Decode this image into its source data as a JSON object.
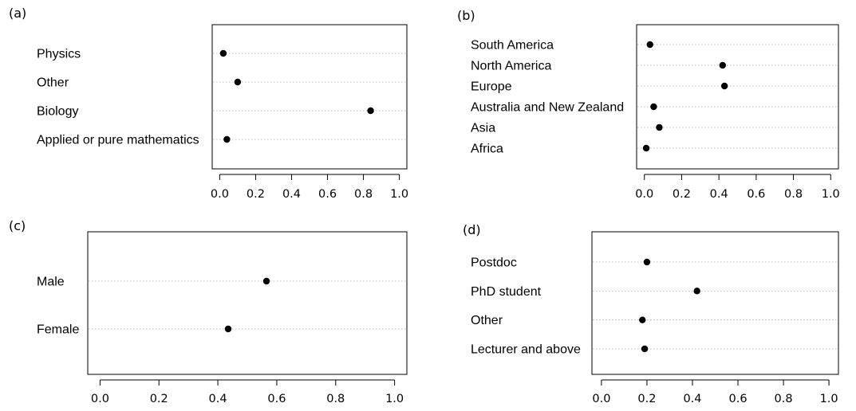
{
  "chart_data": [
    {
      "type": "scatter",
      "panel_label": "(a)",
      "categories": [
        "Physics",
        "Other",
        "Biology",
        "Applied or pure mathematics"
      ],
      "values": [
        0.02,
        0.1,
        0.84,
        0.04
      ],
      "xlim": [
        0.0,
        1.0
      ],
      "xticks": [
        "0.0",
        "0.2",
        "0.4",
        "0.6",
        "0.8",
        "1.0"
      ],
      "grid": "dotted horizontal guide lines"
    },
    {
      "type": "scatter",
      "panel_label": "(b)",
      "categories": [
        "South America",
        "North America",
        "Europe",
        "Australia and New Zealand",
        "Asia",
        "Africa"
      ],
      "values": [
        0.03,
        0.42,
        0.43,
        0.05,
        0.08,
        0.01
      ],
      "xlim": [
        0.0,
        1.0
      ],
      "xticks": [
        "0.0",
        "0.2",
        "0.4",
        "0.6",
        "0.8",
        "1.0"
      ],
      "grid": "dotted horizontal guide lines"
    },
    {
      "type": "scatter",
      "panel_label": "(c)",
      "categories": [
        "Male",
        "Female"
      ],
      "values": [
        0.565,
        0.435
      ],
      "xlim": [
        0.0,
        1.0
      ],
      "xticks": [
        "0.0",
        "0.2",
        "0.4",
        "0.6",
        "0.8",
        "1.0"
      ],
      "grid": "dotted horizontal guide lines"
    },
    {
      "type": "scatter",
      "panel_label": "(d)",
      "categories": [
        "Postdoc",
        "PhD student",
        "Other",
        "Lecturer and above"
      ],
      "values": [
        0.2,
        0.42,
        0.18,
        0.19
      ],
      "xlim": [
        0.0,
        1.0
      ],
      "xticks": [
        "0.0",
        "0.2",
        "0.4",
        "0.6",
        "0.8",
        "1.0"
      ],
      "grid": "dotted horizontal guide lines"
    }
  ]
}
